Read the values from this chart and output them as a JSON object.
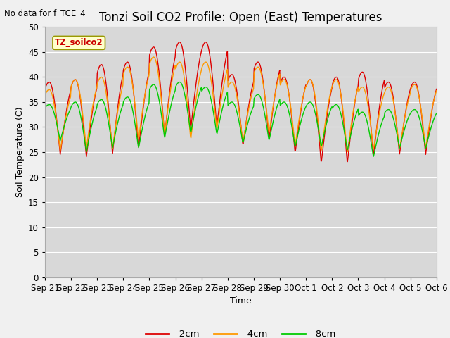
{
  "title": "Tonzi Soil CO2 Profile: Open (East) Temperatures",
  "no_data_note": "No data for f_TCE_4",
  "legend_box_label": "TZ_soilco2",
  "ylabel": "Soil Temperature (C)",
  "xlabel": "Time",
  "ylim": [
    0,
    50
  ],
  "yticks": [
    0,
    5,
    10,
    15,
    20,
    25,
    30,
    35,
    40,
    45,
    50
  ],
  "xtick_labels": [
    "Sep 21",
    "Sep 22",
    "Sep 23",
    "Sep 24",
    "Sep 25",
    "Sep 26",
    "Sep 27",
    "Sep 28",
    "Sep 29",
    "Sep 30",
    "Oct 1",
    "Oct 2",
    "Oct 3",
    "Oct 4",
    "Oct 5",
    "Oct 6"
  ],
  "line_colors": {
    "m2cm": "#dd0000",
    "m4cm": "#ff9900",
    "m8cm": "#00cc00"
  },
  "legend_labels": [
    "-2cm",
    "-4cm",
    "-8cm"
  ],
  "fig_bg_color": "#f0f0f0",
  "plot_bg_color": "#d8d8d8",
  "title_fontsize": 12,
  "axis_fontsize": 9,
  "tick_fontsize": 8.5,
  "n_days": 15,
  "hours_per_day": 24,
  "n_points_per_day": 48
}
